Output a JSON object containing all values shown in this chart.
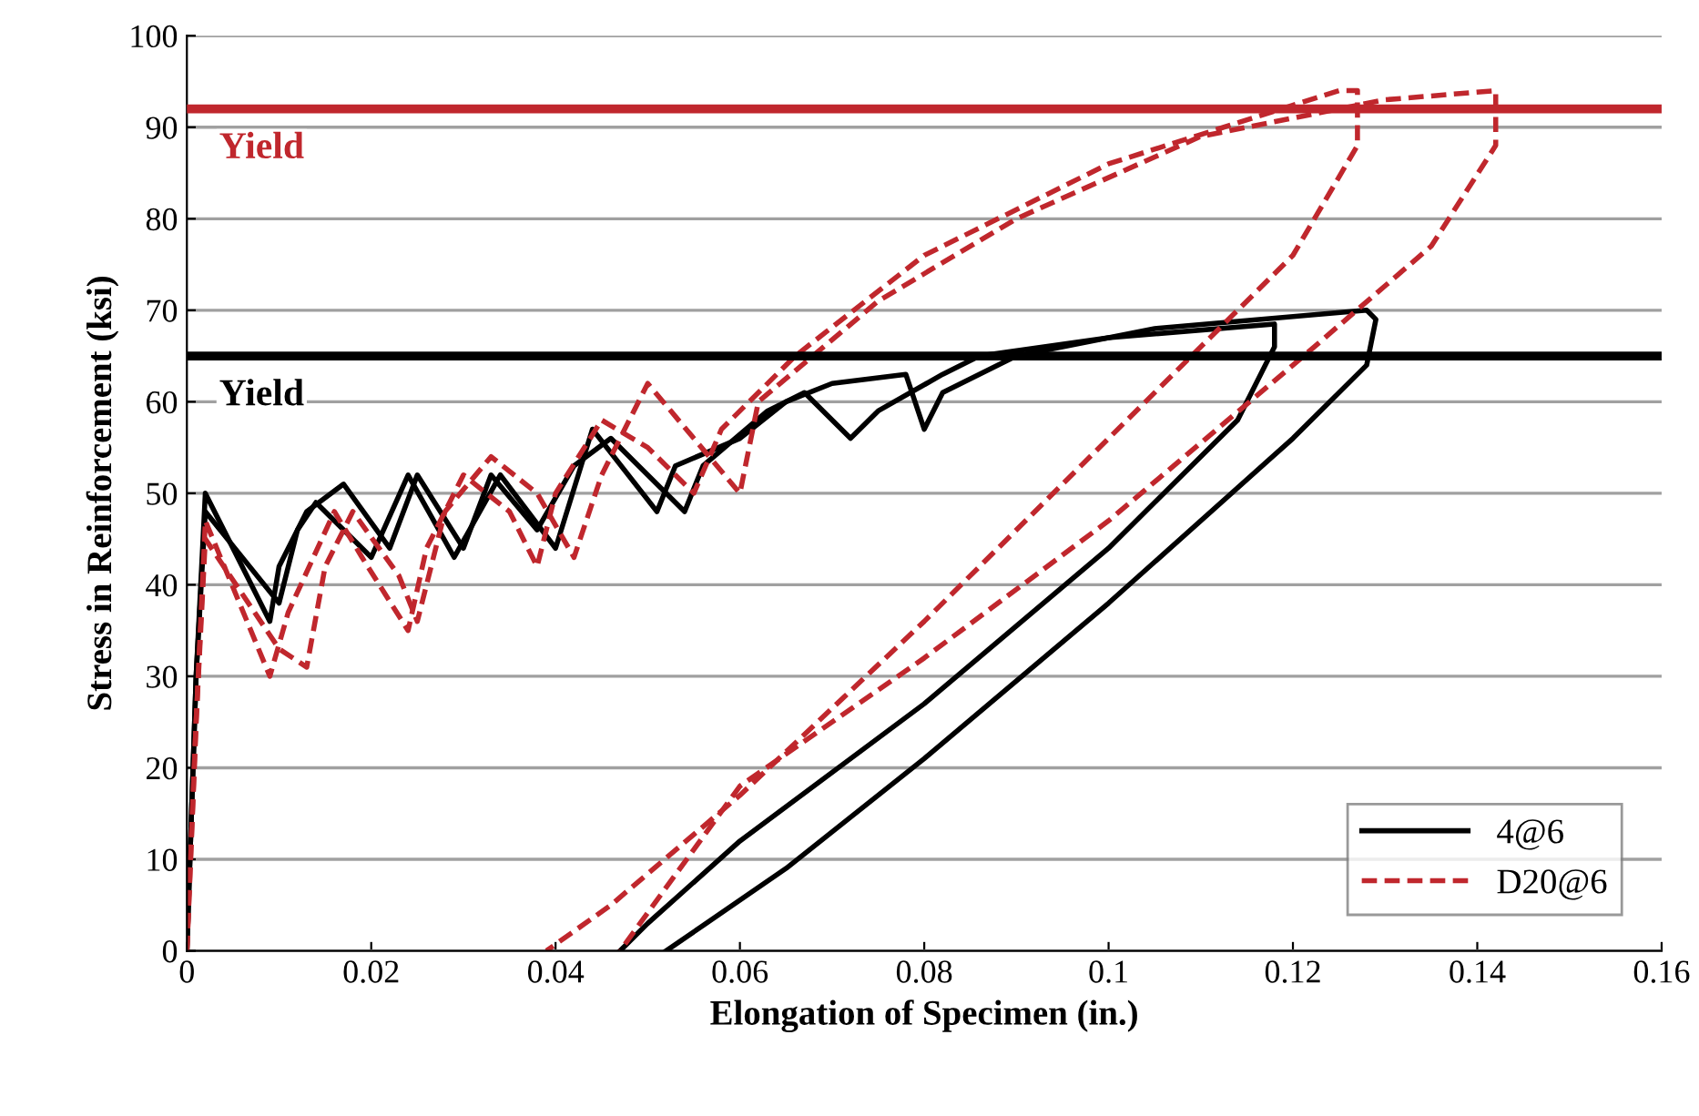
{
  "chart_data": {
    "type": "line",
    "xlabel": "Elongation of Specimen (in.)",
    "ylabel": "Stress in Reinforcement (ksi)",
    "xlim": [
      0,
      0.16
    ],
    "xticks": [
      0,
      0.02,
      0.04,
      0.06,
      0.08,
      {
        "value": 0.1,
        "label": "0.1"
      },
      0.12,
      0.14,
      0.16
    ],
    "ylim": [
      0,
      100
    ],
    "yticks": [
      0,
      10,
      20,
      30,
      40,
      50,
      60,
      70,
      80,
      90,
      100
    ],
    "grid": "y",
    "legend": "bottom right",
    "ref_lines": [
      {
        "axis": "y",
        "value": 92,
        "label": "Yield",
        "color": "#c0272d"
      },
      {
        "axis": "y",
        "value": 65,
        "label": "Yield",
        "color": "#000000"
      }
    ],
    "series": [
      {
        "name": "4@6",
        "color": "#000000",
        "line_style": "solid",
        "x": [
          0,
          0.001,
          0.002,
          0.009,
          0.01,
          0.013,
          0.017,
          0.022,
          0.025,
          0.03,
          0.033,
          0.038,
          0.042,
          0.046,
          0.054,
          0.056,
          0.063,
          0.067,
          0.072,
          0.075,
          0.082,
          0.086,
          0.1,
          0.118,
          0.118,
          0.114,
          0.1,
          0.08,
          0.06,
          0.05,
          0.047
        ],
        "values": [
          0,
          30,
          50,
          36,
          42,
          48,
          51,
          44,
          52,
          44,
          52,
          46,
          53,
          56,
          48,
          53,
          59,
          61,
          56,
          59,
          63,
          65,
          67,
          68.5,
          66,
          58,
          44,
          27,
          12,
          3,
          0
        ]
      },
      {
        "color": "#000000",
        "line_style": "solid",
        "x": [
          0,
          0.001,
          0.002,
          0.01,
          0.012,
          0.014,
          0.02,
          0.024,
          0.029,
          0.034,
          0.04,
          0.044,
          0.051,
          0.053,
          0.06,
          0.065,
          0.07,
          0.078,
          0.08,
          0.082,
          0.09,
          0.105,
          0.128,
          0.129,
          0.128,
          0.12,
          0.1,
          0.08,
          0.065,
          0.052
        ],
        "values": [
          0,
          30,
          48,
          38,
          46,
          49,
          43,
          52,
          43,
          52,
          44,
          57,
          48,
          53,
          56,
          60,
          62,
          63,
          57,
          61,
          65,
          68,
          70,
          69,
          64,
          56,
          38,
          21,
          9,
          0
        ]
      },
      {
        "name": "D20@6",
        "color": "#c0272d",
        "line_style": "dashed",
        "x": [
          0,
          0.001,
          0.002,
          0.009,
          0.011,
          0.016,
          0.019,
          0.024,
          0.026,
          0.03,
          0.035,
          0.038,
          0.04,
          0.045,
          0.05,
          0.055,
          0.058,
          0.066,
          0.08,
          0.1,
          0.125,
          0.127,
          0.127,
          0.12,
          0.1,
          0.08,
          0.06,
          0.046,
          0.039
        ],
        "values": [
          0,
          25,
          47,
          30,
          37,
          48,
          43,
          35,
          44,
          52,
          48,
          42,
          50,
          58,
          55,
          50,
          57,
          65,
          76,
          86,
          94,
          94,
          88,
          76,
          56,
          36,
          17,
          5,
          0
        ]
      },
      {
        "color": "#c0272d",
        "line_style": "dashed",
        "x": [
          0,
          0.001,
          0.002,
          0.01,
          0.013,
          0.015,
          0.018,
          0.023,
          0.025,
          0.028,
          0.033,
          0.038,
          0.042,
          0.045,
          0.05,
          0.055,
          0.06,
          0.062,
          0.075,
          0.09,
          0.11,
          0.13,
          0.142,
          0.142,
          0.135,
          0.12,
          0.1,
          0.08,
          0.06,
          0.047
        ],
        "values": [
          0,
          25,
          45,
          33,
          31,
          42,
          48,
          41,
          36,
          48,
          54,
          50,
          43,
          52,
          62,
          56,
          50,
          60,
          71,
          80,
          89,
          93,
          94,
          88,
          77,
          64,
          47,
          32,
          18,
          0
        ]
      }
    ]
  }
}
